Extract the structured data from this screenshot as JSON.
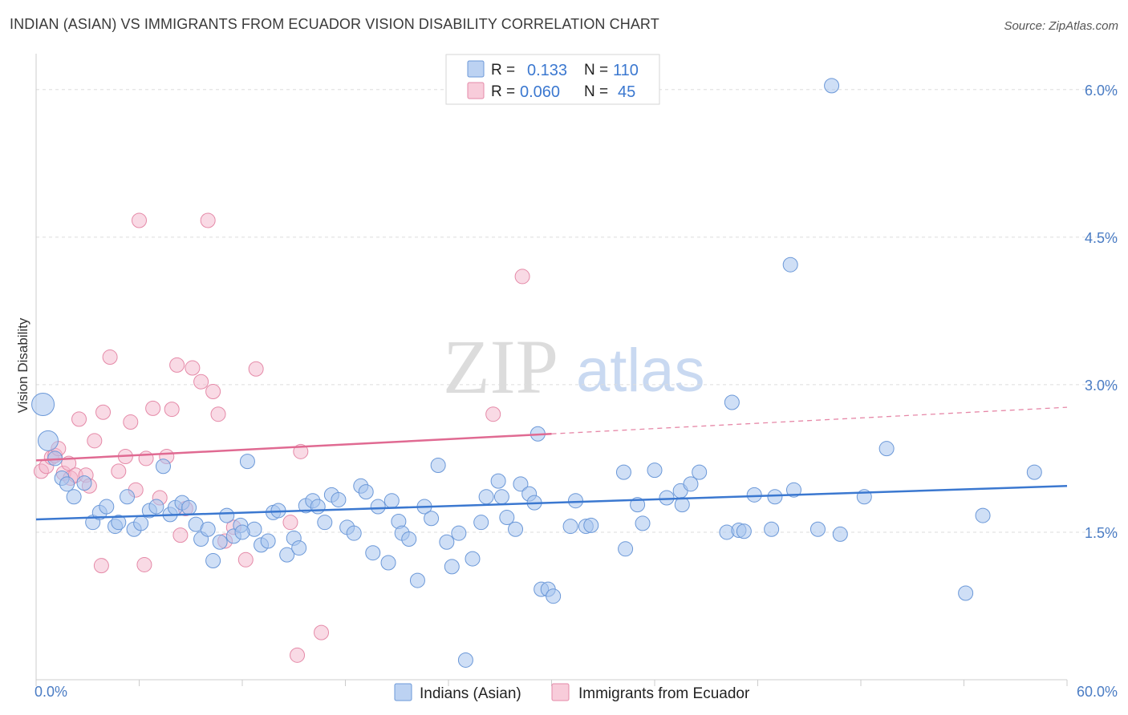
{
  "title": "INDIAN (ASIAN) VS IMMIGRANTS FROM ECUADOR VISION DISABILITY CORRELATION CHART",
  "source": "Source: ZipAtlas.com",
  "watermark": {
    "zip": "ZIP",
    "atlas": "atlas"
  },
  "colors": {
    "blue": "#3b78d0",
    "blue_fill": "#a8c4ee",
    "pink": "#e06a92",
    "pink_fill": "#f4b6cb",
    "axis_text": "#4a7cc4"
  },
  "chart_data": {
    "type": "scatter",
    "title": "INDIAN (ASIAN) VS IMMIGRANTS FROM ECUADOR VISION DISABILITY CORRELATION CHART",
    "xlabel": "",
    "ylabel": "Vision Disability",
    "xlim": [
      0,
      60
    ],
    "ylim": [
      0,
      6.3
    ],
    "x_tick_labels": [
      "0.0%",
      "60.0%"
    ],
    "y_ticks": [
      1.5,
      3.0,
      4.5,
      6.0
    ],
    "y_tick_labels": [
      "1.5%",
      "3.0%",
      "4.5%",
      "6.0%"
    ],
    "legend": {
      "position": "top-center",
      "entries": [
        {
          "r_label": "R =",
          "r": "0.133",
          "n_label": "N =",
          "n": "110"
        },
        {
          "r_label": "R =",
          "r": "0.060",
          "n_label": "N =",
          "n": "45"
        }
      ]
    },
    "series": [
      {
        "name": "Indians (Asian)",
        "color": "blue",
        "r": 0.133,
        "n": 110,
        "trend": {
          "x0": 0,
          "y0": 1.63,
          "x1": 60,
          "y1": 1.97
        },
        "points": [
          [
            0.4,
            2.8
          ],
          [
            0.7,
            2.43
          ],
          [
            1.1,
            2.25
          ],
          [
            1.5,
            2.05
          ],
          [
            1.8,
            1.99
          ],
          [
            2.2,
            1.86
          ],
          [
            2.8,
            2.0
          ],
          [
            3.3,
            1.6
          ],
          [
            3.7,
            1.7
          ],
          [
            4.1,
            1.76
          ],
          [
            4.6,
            1.56
          ],
          [
            4.8,
            1.6
          ],
          [
            5.3,
            1.86
          ],
          [
            5.7,
            1.53
          ],
          [
            6.1,
            1.59
          ],
          [
            6.6,
            1.72
          ],
          [
            7.0,
            1.76
          ],
          [
            7.4,
            2.17
          ],
          [
            7.8,
            1.68
          ],
          [
            8.1,
            1.75
          ],
          [
            8.5,
            1.8
          ],
          [
            8.9,
            1.75
          ],
          [
            9.3,
            1.58
          ],
          [
            9.6,
            1.43
          ],
          [
            10.0,
            1.53
          ],
          [
            10.3,
            1.21
          ],
          [
            10.7,
            1.4
          ],
          [
            11.1,
            1.67
          ],
          [
            11.5,
            1.46
          ],
          [
            11.9,
            1.57
          ],
          [
            12.3,
            2.22
          ],
          [
            12.7,
            1.53
          ],
          [
            13.1,
            1.37
          ],
          [
            13.5,
            1.41
          ],
          [
            13.8,
            1.7
          ],
          [
            14.1,
            1.72
          ],
          [
            14.6,
            1.27
          ],
          [
            15.0,
            1.44
          ],
          [
            15.3,
            1.34
          ],
          [
            15.7,
            1.77
          ],
          [
            16.1,
            1.82
          ],
          [
            16.4,
            1.76
          ],
          [
            16.8,
            1.6
          ],
          [
            17.2,
            1.88
          ],
          [
            17.6,
            1.83
          ],
          [
            18.1,
            1.55
          ],
          [
            18.5,
            1.49
          ],
          [
            18.9,
            1.97
          ],
          [
            19.2,
            1.91
          ],
          [
            19.6,
            1.29
          ],
          [
            19.9,
            1.76
          ],
          [
            20.5,
            1.19
          ],
          [
            20.7,
            1.82
          ],
          [
            21.1,
            1.61
          ],
          [
            21.3,
            1.49
          ],
          [
            21.7,
            1.43
          ],
          [
            22.2,
            1.01
          ],
          [
            22.6,
            1.76
          ],
          [
            23.0,
            1.64
          ],
          [
            23.4,
            2.18
          ],
          [
            23.9,
            1.4
          ],
          [
            24.2,
            1.15
          ],
          [
            24.6,
            1.49
          ],
          [
            25.4,
            1.23
          ],
          [
            25.9,
            1.6
          ],
          [
            26.2,
            1.86
          ],
          [
            26.9,
            2.02
          ],
          [
            27.1,
            1.86
          ],
          [
            27.4,
            1.65
          ],
          [
            27.9,
            1.53
          ],
          [
            28.2,
            1.99
          ],
          [
            28.7,
            1.89
          ],
          [
            29.0,
            1.8
          ],
          [
            29.2,
            2.5
          ],
          [
            29.4,
            0.92
          ],
          [
            29.8,
            0.92
          ],
          [
            30.1,
            0.85
          ],
          [
            31.1,
            1.56
          ],
          [
            31.4,
            1.82
          ],
          [
            32.0,
            1.56
          ],
          [
            32.3,
            1.57
          ],
          [
            34.2,
            2.11
          ],
          [
            34.3,
            1.33
          ],
          [
            35.0,
            1.78
          ],
          [
            35.3,
            1.59
          ],
          [
            36.0,
            2.13
          ],
          [
            36.7,
            1.85
          ],
          [
            37.5,
            1.92
          ],
          [
            37.6,
            1.78
          ],
          [
            38.1,
            1.99
          ],
          [
            38.6,
            2.11
          ],
          [
            40.2,
            1.5
          ],
          [
            40.9,
            1.52
          ],
          [
            41.2,
            1.51
          ],
          [
            41.8,
            1.88
          ],
          [
            42.8,
            1.53
          ],
          [
            43.0,
            1.86
          ],
          [
            44.1,
            1.93
          ],
          [
            45.5,
            1.53
          ],
          [
            46.3,
            6.04
          ],
          [
            46.8,
            1.48
          ],
          [
            48.2,
            1.86
          ],
          [
            49.5,
            2.35
          ],
          [
            54.1,
            0.88
          ],
          [
            55.1,
            1.67
          ],
          [
            58.1,
            2.11
          ],
          [
            25.0,
            0.2
          ],
          [
            43.9,
            4.22
          ],
          [
            40.5,
            2.82
          ],
          [
            12.0,
            1.5
          ]
        ]
      },
      {
        "name": "Immigrants from Ecuador",
        "color": "pink",
        "r": 0.06,
        "n": 45,
        "trend": {
          "x0": 0,
          "y0": 2.23,
          "x1": 30,
          "y1": 2.5,
          "dashed_to_x": 60,
          "dashed_to_y": 2.77
        },
        "points": [
          [
            0.3,
            2.12
          ],
          [
            0.6,
            2.17
          ],
          [
            0.9,
            2.26
          ],
          [
            1.1,
            2.28
          ],
          [
            1.3,
            2.35
          ],
          [
            1.6,
            2.1
          ],
          [
            1.9,
            2.2
          ],
          [
            2.0,
            2.05
          ],
          [
            2.3,
            2.08
          ],
          [
            2.5,
            2.65
          ],
          [
            2.9,
            2.08
          ],
          [
            3.1,
            1.97
          ],
          [
            3.4,
            2.43
          ],
          [
            3.9,
            2.72
          ],
          [
            4.3,
            3.28
          ],
          [
            4.8,
            2.12
          ],
          [
            5.2,
            2.27
          ],
          [
            5.5,
            2.62
          ],
          [
            5.8,
            1.93
          ],
          [
            6.0,
            4.67
          ],
          [
            6.4,
            2.25
          ],
          [
            6.8,
            2.76
          ],
          [
            7.2,
            1.85
          ],
          [
            7.6,
            2.27
          ],
          [
            7.9,
            2.75
          ],
          [
            8.2,
            3.2
          ],
          [
            8.4,
            1.47
          ],
          [
            8.7,
            1.74
          ],
          [
            9.1,
            3.17
          ],
          [
            9.6,
            3.03
          ],
          [
            10.0,
            4.67
          ],
          [
            10.3,
            2.93
          ],
          [
            10.6,
            2.7
          ],
          [
            11.0,
            1.41
          ],
          [
            11.5,
            1.55
          ],
          [
            12.2,
            1.22
          ],
          [
            12.8,
            3.16
          ],
          [
            14.8,
            1.6
          ],
          [
            15.4,
            2.32
          ],
          [
            16.6,
            0.48
          ],
          [
            15.2,
            0.25
          ],
          [
            3.8,
            1.16
          ],
          [
            6.3,
            1.17
          ],
          [
            26.6,
            2.7
          ],
          [
            28.3,
            4.1
          ]
        ]
      }
    ]
  },
  "bottom_legend": [
    "Indians (Asian)",
    "Immigrants from Ecuador"
  ]
}
